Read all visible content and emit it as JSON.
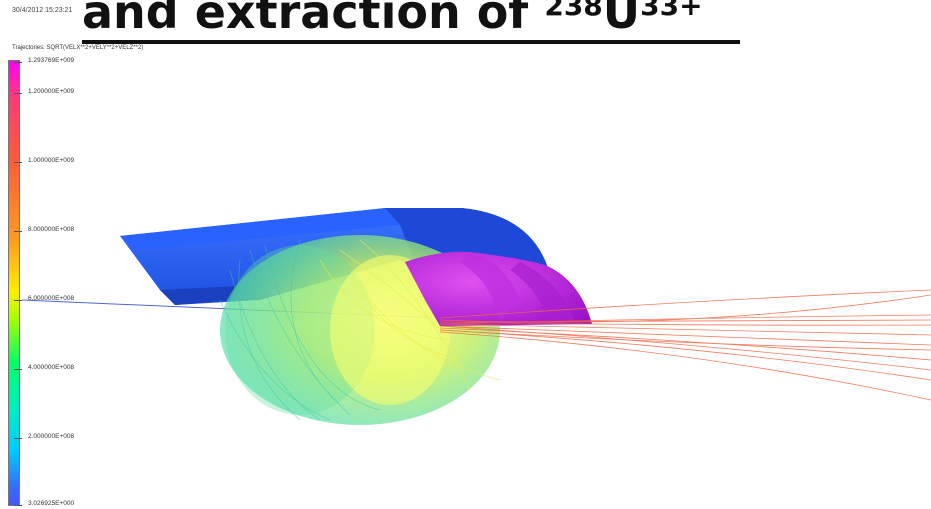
{
  "title": {
    "text": "and extraction of",
    "isotope_mass": "238",
    "element": "U",
    "charge": "33+"
  },
  "timestamp": "30/4/2012 15:23:21",
  "trajectories_label": "Trajectories: SQRT(VELX**2+VELY**2+VELZ**2)",
  "colorbar": {
    "labels": [
      "1.293769E+009",
      "1.200000E+009",
      "1.000000E+009",
      "8.000000E+008",
      "6.000000E+008",
      "4.000000E+008",
      "2.000000E+008",
      "3.026925E+000"
    ]
  },
  "colors": {
    "magnet_blue": "#2255ee",
    "magnet_purple": "#bb22dd",
    "beam_red": "#ee6644",
    "beam_yellow": "#e8f060",
    "beam_green": "#44dd88"
  }
}
